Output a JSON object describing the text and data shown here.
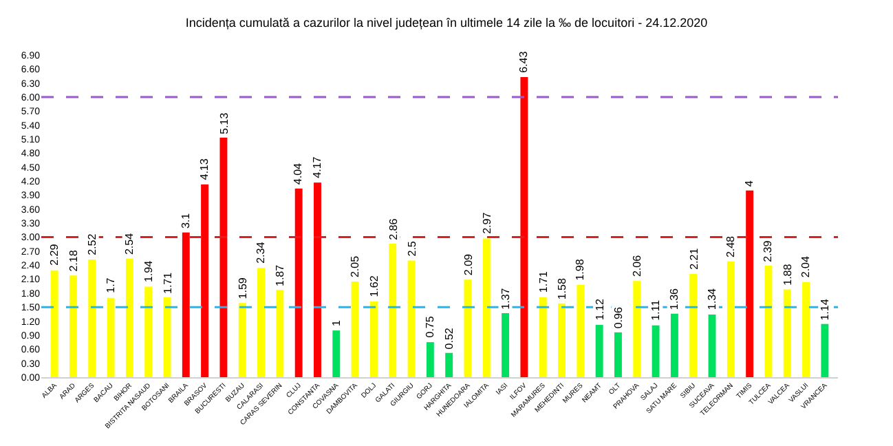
{
  "chart_data": {
    "type": "bar",
    "title": "Incidența cumulată a cazurilor la nivel județean în ultimele 14 zile la ‰ de locuitori - 24.12.2020",
    "categories": [
      "ALBA",
      "ARAD",
      "ARGES",
      "BACAU",
      "BIHOR",
      "BISTRITA NASAUD",
      "BOTOSANI",
      "BRAILA",
      "BRASOV",
      "BUCURESTI",
      "BUZAU",
      "CALARASI",
      "CARAS SEVERIN",
      "CLUJ",
      "CONSTANTA",
      "COVASNA",
      "DAMBOVITA",
      "DOLJ",
      "GALATI",
      "GIURGIU",
      "GORJ",
      "HARGHITA",
      "HUNEDOARA",
      "IALOMITA",
      "IASI",
      "ILFOV",
      "MARAMURES",
      "MEHEDINTI",
      "MURES",
      "NEAMT",
      "OLT",
      "PRAHOVA",
      "SALAJ",
      "SATU MARE",
      "SIBIU",
      "SUCEAVA",
      "TELEORMAN",
      "TIMIS",
      "TULCEA",
      "VALCEA",
      "VASLUI",
      "VRANCEA"
    ],
    "values": [
      2.29,
      2.18,
      2.52,
      1.7,
      2.54,
      1.94,
      1.71,
      3.1,
      4.13,
      5.13,
      1.59,
      2.34,
      1.87,
      4.04,
      4.17,
      1,
      2.05,
      1.62,
      2.86,
      2.5,
      0.75,
      0.52,
      2.09,
      2.97,
      1.37,
      6.43,
      1.71,
      1.58,
      1.98,
      1.12,
      0.96,
      2.06,
      1.11,
      1.36,
      2.21,
      1.34,
      2.48,
      4,
      2.39,
      1.88,
      2.04,
      1.14
    ],
    "colors": [
      "#ffff00",
      "#ffff00",
      "#ffff00",
      "#ffff00",
      "#ffff00",
      "#ffff00",
      "#ffff00",
      "#ff0000",
      "#ff0000",
      "#ff0000",
      "#ffff00",
      "#ffff00",
      "#ffff00",
      "#ff0000",
      "#ff0000",
      "#00e060",
      "#ffff00",
      "#ffff00",
      "#ffff00",
      "#ffff00",
      "#00e060",
      "#00e060",
      "#ffff00",
      "#ffff00",
      "#00e060",
      "#ff0000",
      "#ffff00",
      "#ffff00",
      "#ffff00",
      "#00e060",
      "#00e060",
      "#ffff00",
      "#00e060",
      "#00e060",
      "#ffff00",
      "#00e060",
      "#ffff00",
      "#ff0000",
      "#ffff00",
      "#ffff00",
      "#ffff00",
      "#00e060"
    ],
    "data_labels": true,
    "ylim": [
      0,
      6.9
    ],
    "yticks": [
      {
        "value": 0,
        "label": "0.00"
      },
      {
        "value": 0.3,
        "label": "0.30"
      },
      {
        "value": 0.6,
        "label": "0.60"
      },
      {
        "value": 0.9,
        "label": "0.90"
      },
      {
        "value": 1.2,
        "label": "1.20"
      },
      {
        "value": 1.5,
        "label": "1.50"
      },
      {
        "value": 1.8,
        "label": "1.80"
      },
      {
        "value": 2.1,
        "label": "2.10"
      },
      {
        "value": 2.4,
        "label": "2.40"
      },
      {
        "value": 2.7,
        "label": "2.70"
      },
      {
        "value": 3.0,
        "label": "3.00"
      },
      {
        "value": 3.3,
        "label": "3.30"
      },
      {
        "value": 3.6,
        "label": "3.60"
      },
      {
        "value": 3.9,
        "label": "3.90"
      },
      {
        "value": 4.2,
        "label": "4.20"
      },
      {
        "value": 4.5,
        "label": "4.50"
      },
      {
        "value": 4.8,
        "label": "4.80"
      },
      {
        "value": 5.1,
        "label": "5.10"
      },
      {
        "value": 5.4,
        "label": "5.40"
      },
      {
        "value": 5.7,
        "label": "5.70"
      },
      {
        "value": 6.0,
        "label": "6.00"
      },
      {
        "value": 6.3,
        "label": "6.30"
      },
      {
        "value": 6.6,
        "label": "6.60"
      },
      {
        "value": 6.9,
        "label": "6.90"
      }
    ],
    "ref_lines": [
      {
        "axis": "y",
        "value": 6,
        "color": "#9b59d0",
        "line_style": "dashed"
      },
      {
        "axis": "y",
        "value": 3,
        "color": "#e02020",
        "line_style": "dashed"
      },
      {
        "axis": "y",
        "value": 1.5,
        "color": "#20b8f0",
        "line_style": "dashed"
      }
    ]
  }
}
